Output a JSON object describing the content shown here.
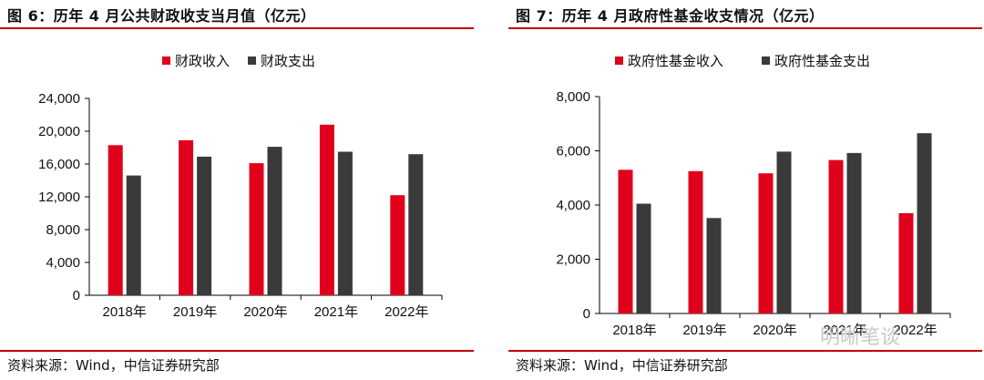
{
  "panels": {
    "left": {
      "title": "图 6：历年 4 月公共财政收支当月值（亿元）",
      "source": "资料来源：Wind，中信证券研究部"
    },
    "right": {
      "title": "图 7：历年 4 月政府性基金收支情况（亿元）",
      "source": "资料来源：Wind，中信证券研究部"
    }
  },
  "watermark": {
    "text": "明晰笔谈"
  },
  "colors": {
    "income": "#e0001b",
    "expense": "#3a3a3a",
    "rule": "#c00000"
  },
  "chart_data": [
    {
      "type": "bar",
      "categories": [
        "2018年",
        "2019年",
        "2020年",
        "2021年",
        "2022年"
      ],
      "series": [
        {
          "name": "财政收入",
          "values": [
            18300,
            18900,
            16100,
            20800,
            12200
          ]
        },
        {
          "name": "财政支出",
          "values": [
            14600,
            16900,
            18100,
            17500,
            17200
          ]
        }
      ],
      "ylim": [
        0,
        24000
      ],
      "yticks": [
        0,
        4000,
        8000,
        12000,
        16000,
        20000,
        24000
      ],
      "ytick_labels": [
        "0",
        "4,000",
        "8,000",
        "12,000",
        "16,000",
        "20,000",
        "24,000"
      ],
      "legend": "top",
      "grid": false
    },
    {
      "type": "bar",
      "categories": [
        "2018年",
        "2019年",
        "2020年",
        "2021年",
        "2022年"
      ],
      "series": [
        {
          "name": "政府性基金收入",
          "values": [
            5300,
            5250,
            5170,
            5660,
            3700
          ]
        },
        {
          "name": "政府性基金支出",
          "values": [
            4050,
            3520,
            5970,
            5920,
            6650
          ]
        }
      ],
      "ylim": [
        0,
        8000
      ],
      "yticks": [
        0,
        2000,
        4000,
        6000,
        8000
      ],
      "ytick_labels": [
        "0",
        "2,000",
        "4,000",
        "6,000",
        "8,000"
      ],
      "legend": "top",
      "grid": false
    }
  ]
}
